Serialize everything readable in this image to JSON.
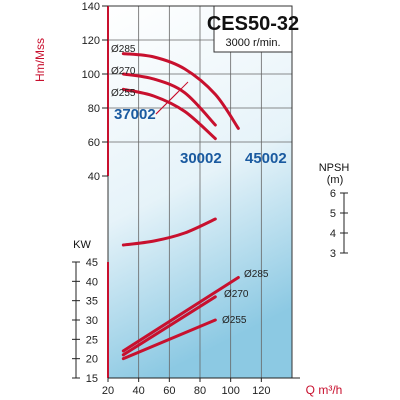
{
  "chart_data": {
    "type": "line",
    "title": "CES50-32",
    "subtitle": "3000 r/min.",
    "xlabel": "Q m³/h",
    "xlim": [
      20,
      140
    ],
    "x_ticks": [
      "20",
      "40",
      "60",
      "80",
      "100",
      "120"
    ],
    "colors": {
      "curve": "#c8102e",
      "model_label": "#1a5aa0",
      "grid": "#666666",
      "axis_red": "#c8102e"
    },
    "head": {
      "ylabel": "Hm/Mss",
      "ylim": [
        40,
        140
      ],
      "y_ticks": [
        "40",
        "60",
        "80",
        "100",
        "120",
        "140"
      ],
      "series": [
        {
          "name": "Ø285",
          "x": [
            30,
            50,
            70,
            90,
            105
          ],
          "y": [
            112,
            110,
            103,
            88,
            68
          ]
        },
        {
          "name": "Ø270",
          "x": [
            30,
            50,
            70,
            90
          ],
          "y": [
            100,
            97,
            89,
            70
          ]
        },
        {
          "name": "Ø255",
          "x": [
            30,
            50,
            70,
            90
          ],
          "y": [
            91,
            87,
            78,
            62
          ]
        }
      ],
      "models": [
        "37002",
        "30002",
        "45002"
      ]
    },
    "npsh": {
      "ylabel": "NPSH",
      "unit": "(m)",
      "ylim": [
        3,
        6
      ],
      "y_ticks": [
        "3",
        "4",
        "5",
        "6"
      ],
      "series": [
        {
          "name": "",
          "x": [
            30,
            50,
            70,
            90
          ],
          "y": [
            3.4,
            3.6,
            4.0,
            4.7
          ]
        }
      ]
    },
    "power": {
      "ylabel": "KW",
      "ylim": [
        15,
        45
      ],
      "y_ticks": [
        "15",
        "20",
        "25",
        "30",
        "35",
        "40",
        "45"
      ],
      "series": [
        {
          "name": "Ø285",
          "x": [
            30,
            105
          ],
          "y": [
            22,
            41
          ]
        },
        {
          "name": "Ø270",
          "x": [
            30,
            90
          ],
          "y": [
            21,
            36
          ]
        },
        {
          "name": "Ø255",
          "x": [
            30,
            90
          ],
          "y": [
            20,
            30
          ]
        }
      ]
    }
  }
}
